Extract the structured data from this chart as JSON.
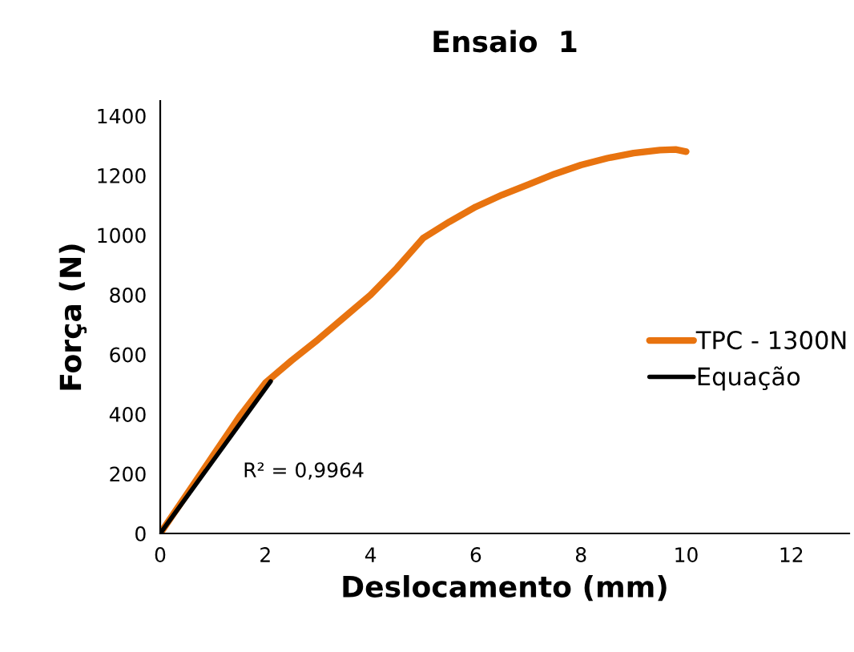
{
  "chart_data": {
    "type": "line",
    "title": "Ensaio  1",
    "xlabel": "Deslocamento (mm)",
    "ylabel": "Força (N)",
    "series": [
      {
        "name": "TPC - 1300N",
        "color": "#e8730f",
        "x": [
          0,
          0.5,
          1,
          1.5,
          2,
          2.5,
          3,
          3.5,
          4,
          4.5,
          5,
          5.5,
          6,
          6.5,
          7,
          7.5,
          8,
          8.5,
          9,
          9.5,
          9.8,
          10
        ],
        "values": [
          0,
          130,
          260,
          390,
          505,
          580,
          650,
          725,
          800,
          890,
          990,
          1045,
          1095,
          1135,
          1170,
          1205,
          1235,
          1258,
          1275,
          1285,
          1287,
          1280
        ]
      },
      {
        "name": "Equação",
        "color": "#000000",
        "x": [
          0,
          2.1
        ],
        "values": [
          0,
          510
        ]
      }
    ],
    "xlim": [
      0,
      13.1
    ],
    "ylim": [
      0,
      1450
    ],
    "xticks": [
      0,
      2,
      4,
      6,
      8,
      10,
      12
    ],
    "yticks": [
      0,
      200,
      400,
      600,
      800,
      1000,
      1200,
      1400
    ],
    "grid": false,
    "legend": "right",
    "annotations": [
      "R² = 0,9964"
    ]
  }
}
